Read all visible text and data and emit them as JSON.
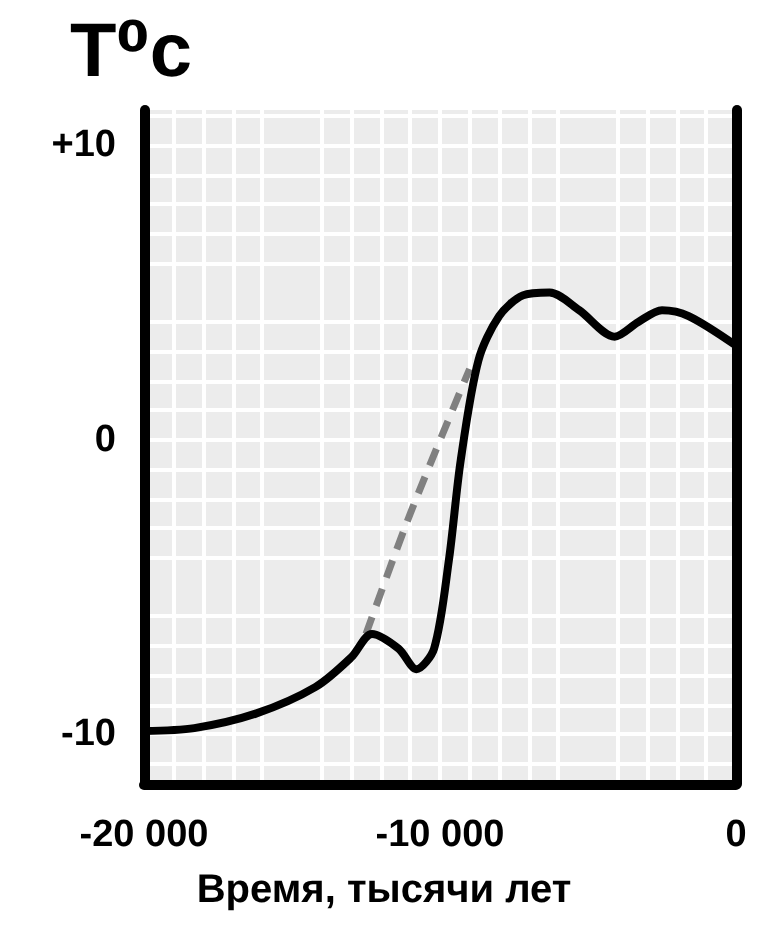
{
  "chart_data": {
    "type": "line",
    "ylabel": "T⁰c",
    "xlabel": "Время, тысячи лет",
    "xlim": [
      -20000,
      0
    ],
    "xticks": [
      {
        "value": -20000,
        "label": "-20 000"
      },
      {
        "value": -10000,
        "label": "-10 000"
      },
      0
    ],
    "ylim": [
      -11.7,
      11.2
    ],
    "yticks": [
      {
        "value": -10,
        "label": "-10"
      },
      0,
      {
        "value": 10,
        "label": "+10"
      }
    ],
    "grid": true,
    "marker": "none",
    "series": [
      {
        "color": "#000000",
        "line_style": "solid",
        "x": [
          -20000,
          -18300,
          -16200,
          -14200,
          -13000,
          -12300,
          -11400,
          -10800,
          -10200,
          -9700,
          -9300,
          -8700,
          -8000,
          -7200,
          -6300,
          -5300,
          -4100,
          -3300,
          -2500,
          -1600,
          0
        ],
        "values": [
          -9.9,
          -9.8,
          -9.3,
          -8.4,
          -7.4,
          -6.6,
          -7.1,
          -7.8,
          -7.1,
          -4.1,
          -0.7,
          2.7,
          4.2,
          4.9,
          5.0,
          4.4,
          3.5,
          4.0,
          4.4,
          4.2,
          3.2
        ]
      },
      {
        "color": "#808080",
        "line_style": "dashed",
        "x": [
          -12500,
          -11000,
          -9000
        ],
        "values": [
          -6.6,
          -2.5,
          2.4
        ]
      }
    ]
  }
}
